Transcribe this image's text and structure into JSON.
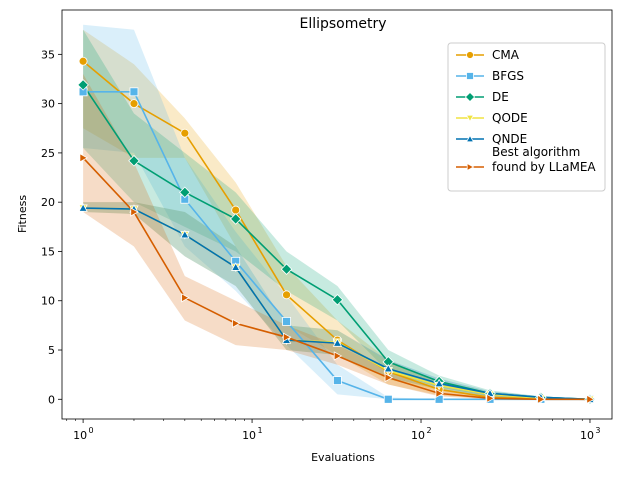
{
  "chart_data": {
    "type": "line",
    "title": "Ellipsometry",
    "xlabel": "Evaluations",
    "ylabel": "Fitness",
    "xscale": "log",
    "xlim": [
      0.75,
      1350
    ],
    "ylim": [
      -2,
      39.5
    ],
    "yticks": [
      0,
      5,
      10,
      15,
      20,
      25,
      30,
      35
    ],
    "xticks": [
      {
        "value": 1,
        "base": "10",
        "exp": "0"
      },
      {
        "value": 10,
        "base": "10",
        "exp": "1"
      },
      {
        "value": 100,
        "base": "10",
        "exp": "2"
      },
      {
        "value": 1000,
        "base": "10",
        "exp": "3"
      }
    ],
    "grid": false,
    "legend_position": "top-right",
    "series": [
      {
        "name": "CMA",
        "color": "#E69F00",
        "marker": "circle",
        "x": [
          1,
          2,
          4,
          8,
          16,
          32,
          64,
          128,
          256,
          512,
          1000
        ],
        "y": [
          34.3,
          30.0,
          27.0,
          19.2,
          10.6,
          6.0,
          2.8,
          1.0,
          0.2,
          0.05,
          0.0
        ],
        "lower": [
          27.5,
          24.5,
          24.5,
          15.5,
          7.5,
          4.5,
          1.5,
          0.4,
          0.05,
          0.0,
          0.0
        ],
        "upper": [
          37.5,
          34.0,
          28.5,
          22.0,
          13.5,
          8.0,
          4.0,
          1.6,
          0.5,
          0.2,
          0.05
        ]
      },
      {
        "name": "BFGS",
        "color": "#56B4E9",
        "marker": "square",
        "x": [
          1,
          2,
          4,
          8,
          16,
          32,
          64,
          128,
          256,
          512,
          1000
        ],
        "y": [
          31.2,
          31.2,
          20.3,
          14.0,
          7.9,
          1.9,
          0.0,
          0.0,
          0.0,
          0.0,
          0.0
        ],
        "lower": [
          25.5,
          25.0,
          15.5,
          11.0,
          5.5,
          0.5,
          0.0,
          0.0,
          0.0,
          0.0,
          0.0
        ],
        "upper": [
          38.0,
          37.5,
          24.5,
          17.0,
          10.5,
          3.5,
          0.2,
          0.0,
          0.0,
          0.0,
          0.0
        ]
      },
      {
        "name": "DE",
        "color": "#009E73",
        "marker": "diamond",
        "x": [
          1,
          2,
          4,
          8,
          16,
          32,
          64,
          128,
          256,
          512,
          1000
        ],
        "y": [
          31.9,
          24.2,
          21.0,
          18.3,
          13.2,
          10.1,
          3.8,
          1.8,
          0.6,
          0.2,
          0.0
        ],
        "lower": [
          25.5,
          20.0,
          17.5,
          15.0,
          11.0,
          8.0,
          2.8,
          1.2,
          0.3,
          0.05,
          0.0
        ],
        "upper": [
          37.5,
          29.0,
          25.0,
          21.0,
          15.0,
          11.5,
          5.0,
          2.4,
          0.9,
          0.3,
          0.05
        ]
      },
      {
        "name": "QODE",
        "color": "#F0E442",
        "marker": "triangle-down",
        "x": [
          1,
          2,
          4,
          8,
          16,
          32,
          64,
          128,
          256,
          512,
          1000
        ],
        "y": [
          19.4,
          19.3,
          16.7,
          13.4,
          6.0,
          5.8,
          2.9,
          1.4,
          0.5,
          0.1,
          0.0
        ],
        "lower": [
          19.0,
          18.8,
          14.5,
          11.5,
          5.0,
          4.5,
          2.0,
          0.9,
          0.2,
          0.0,
          0.0
        ],
        "upper": [
          20.0,
          20.0,
          19.0,
          15.5,
          7.5,
          7.0,
          3.8,
          1.9,
          0.7,
          0.2,
          0.05
        ]
      },
      {
        "name": "QNDE",
        "color": "#0072B2",
        "marker": "triangle-up",
        "x": [
          1,
          2,
          4,
          8,
          16,
          32,
          64,
          128,
          256,
          512,
          1000
        ],
        "y": [
          19.4,
          19.3,
          16.7,
          13.4,
          6.0,
          5.7,
          3.1,
          1.6,
          0.6,
          0.2,
          0.0
        ],
        "lower": [
          19.0,
          18.8,
          14.5,
          11.5,
          5.0,
          4.5,
          2.2,
          1.0,
          0.3,
          0.05,
          0.0
        ],
        "upper": [
          20.0,
          20.0,
          19.0,
          15.5,
          7.5,
          7.0,
          4.0,
          2.1,
          0.8,
          0.3,
          0.05
        ]
      },
      {
        "name": "Best algorithm\nfound by LLaMEA",
        "color": "#D55E00",
        "marker": "triangle-right",
        "x": [
          1,
          2,
          4,
          8,
          16,
          32,
          64,
          128,
          256,
          512,
          1000
        ],
        "y": [
          24.5,
          19.0,
          10.3,
          7.7,
          6.3,
          4.4,
          2.2,
          0.6,
          0.1,
          0.0,
          0.0
        ],
        "lower": [
          19.0,
          15.5,
          8.0,
          5.5,
          5.0,
          3.5,
          1.5,
          0.3,
          0.0,
          0.0,
          0.0
        ],
        "upper": [
          33.0,
          24.0,
          12.5,
          10.0,
          7.5,
          5.5,
          3.0,
          1.0,
          0.3,
          0.05,
          0.0
        ]
      }
    ]
  }
}
